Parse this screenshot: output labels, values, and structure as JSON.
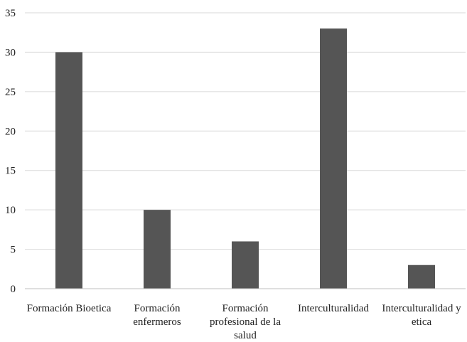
{
  "chart_data": {
    "type": "bar",
    "title": "",
    "xlabel": "",
    "ylabel": "",
    "categories": [
      [
        "Formación Bioetica"
      ],
      [
        "Formación",
        "enfermeros"
      ],
      [
        "Formación",
        "profesional de la",
        "salud"
      ],
      [
        "Interculturalidad"
      ],
      [
        "Interculturalidad y",
        "etica"
      ]
    ],
    "values": [
      30,
      10,
      6,
      33,
      3
    ],
    "ylim": [
      0,
      35
    ],
    "yticks": [
      0,
      5,
      10,
      15,
      20,
      25,
      30,
      35
    ],
    "grid": true,
    "legend": "none",
    "colors": {
      "bar": "#555555",
      "grid": "#d9d9d9",
      "axis": "#bfbfbf",
      "text": "#222222"
    }
  }
}
